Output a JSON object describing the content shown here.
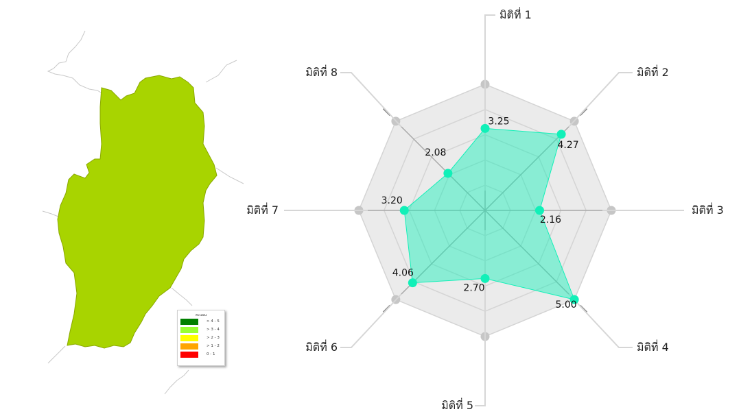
{
  "map": {
    "fill_color": "#a8d400",
    "legend": {
      "title": "คะแนน",
      "items": [
        {
          "label": "> 4 - 5",
          "color": "#008000"
        },
        {
          "label": "> 3 - 4",
          "color": "#99ff33"
        },
        {
          "label": "> 2 - 3",
          "color": "#ffff00"
        },
        {
          "label": "> 1 - 2",
          "color": "#ffa500"
        },
        {
          "label": "0 - 1",
          "color": "#ff0000"
        }
      ]
    }
  },
  "chart_data": {
    "type": "radar",
    "categories": [
      "มิติที่ 1",
      "มิติที่ 2",
      "มิติที่ 3",
      "มิติที่ 4",
      "มิติที่ 5",
      "มิติที่ 6",
      "มิติที่ 7",
      "มิติที่ 8"
    ],
    "series": [
      {
        "values": [
          3.25,
          4.27,
          2.16,
          5.0,
          2.7,
          4.06,
          3.2,
          2.08
        ],
        "labels": [
          "3.25",
          "4.27",
          "2.16",
          "5.00",
          "2.70",
          "4.06",
          "3.20",
          "2.08"
        ],
        "color": "#11f0b8"
      }
    ],
    "range": [
      0,
      5
    ],
    "grid_levels": 5,
    "grid_fill": "#ebebeb",
    "grid_line_color": "#d4d4d4",
    "axis_line_color": "#a8a8a8"
  }
}
